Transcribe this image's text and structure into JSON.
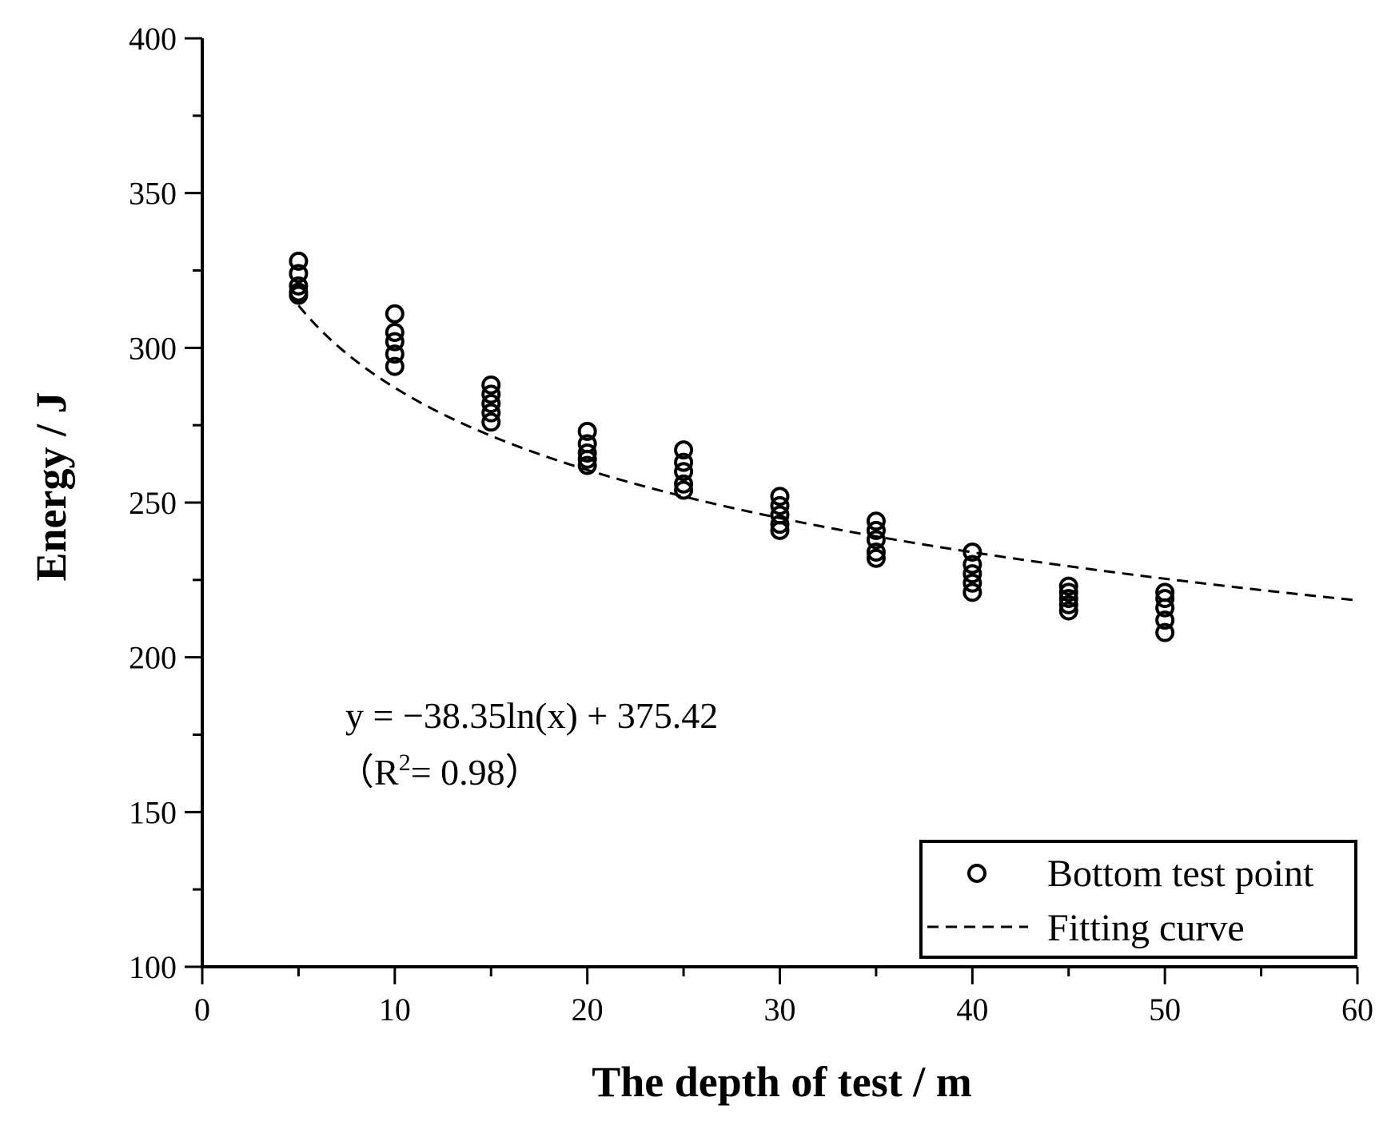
{
  "chart_data": {
    "type": "scatter",
    "xlabel": "The depth of test / m",
    "ylabel": "Energy / J",
    "xlim": [
      0,
      60
    ],
    "ylim": [
      100,
      400
    ],
    "x_ticks": [
      "0",
      "10",
      "20",
      "30",
      "40",
      "50",
      "60"
    ],
    "y_ticks": [
      "100",
      "150",
      "200",
      "250",
      "300",
      "350",
      "400"
    ],
    "grid": false,
    "legend_position": "bottom-right",
    "series": [
      {
        "name": "Bottom test point",
        "marker": "open-circle",
        "points": [
          {
            "x": 5,
            "y": 328
          },
          {
            "x": 5,
            "y": 324
          },
          {
            "x": 5,
            "y": 320
          },
          {
            "x": 5,
            "y": 318
          },
          {
            "x": 5,
            "y": 317
          },
          {
            "x": 10,
            "y": 311
          },
          {
            "x": 10,
            "y": 305
          },
          {
            "x": 10,
            "y": 302
          },
          {
            "x": 10,
            "y": 298
          },
          {
            "x": 10,
            "y": 294
          },
          {
            "x": 15,
            "y": 288
          },
          {
            "x": 15,
            "y": 285
          },
          {
            "x": 15,
            "y": 282
          },
          {
            "x": 15,
            "y": 279
          },
          {
            "x": 15,
            "y": 276
          },
          {
            "x": 20,
            "y": 273
          },
          {
            "x": 20,
            "y": 269
          },
          {
            "x": 20,
            "y": 266
          },
          {
            "x": 20,
            "y": 264
          },
          {
            "x": 20,
            "y": 262
          },
          {
            "x": 25,
            "y": 267
          },
          {
            "x": 25,
            "y": 263
          },
          {
            "x": 25,
            "y": 260
          },
          {
            "x": 25,
            "y": 256
          },
          {
            "x": 25,
            "y": 254
          },
          {
            "x": 30,
            "y": 252
          },
          {
            "x": 30,
            "y": 249
          },
          {
            "x": 30,
            "y": 246
          },
          {
            "x": 30,
            "y": 243
          },
          {
            "x": 30,
            "y": 241
          },
          {
            "x": 35,
            "y": 244
          },
          {
            "x": 35,
            "y": 241
          },
          {
            "x": 35,
            "y": 238
          },
          {
            "x": 35,
            "y": 234
          },
          {
            "x": 35,
            "y": 232
          },
          {
            "x": 40,
            "y": 234
          },
          {
            "x": 40,
            "y": 230
          },
          {
            "x": 40,
            "y": 227
          },
          {
            "x": 40,
            "y": 224
          },
          {
            "x": 40,
            "y": 221
          },
          {
            "x": 45,
            "y": 223
          },
          {
            "x": 45,
            "y": 221
          },
          {
            "x": 45,
            "y": 219
          },
          {
            "x": 45,
            "y": 217
          },
          {
            "x": 45,
            "y": 215
          },
          {
            "x": 50,
            "y": 221
          },
          {
            "x": 50,
            "y": 219
          },
          {
            "x": 50,
            "y": 216
          },
          {
            "x": 50,
            "y": 212
          },
          {
            "x": 50,
            "y": 208
          }
        ]
      },
      {
        "name": "Fitting curve",
        "style": "dashed",
        "function": {
          "form": "a*ln(x)+b",
          "a": -38.35,
          "b": 375.42,
          "x_range": [
            5,
            60
          ]
        }
      }
    ],
    "annotations": [
      {
        "text": "y = −38.35ln(x) + 375.42"
      },
      {
        "text_open": "（R",
        "text_sup": "2",
        "text_rest": "= 0.98）"
      }
    ]
  }
}
